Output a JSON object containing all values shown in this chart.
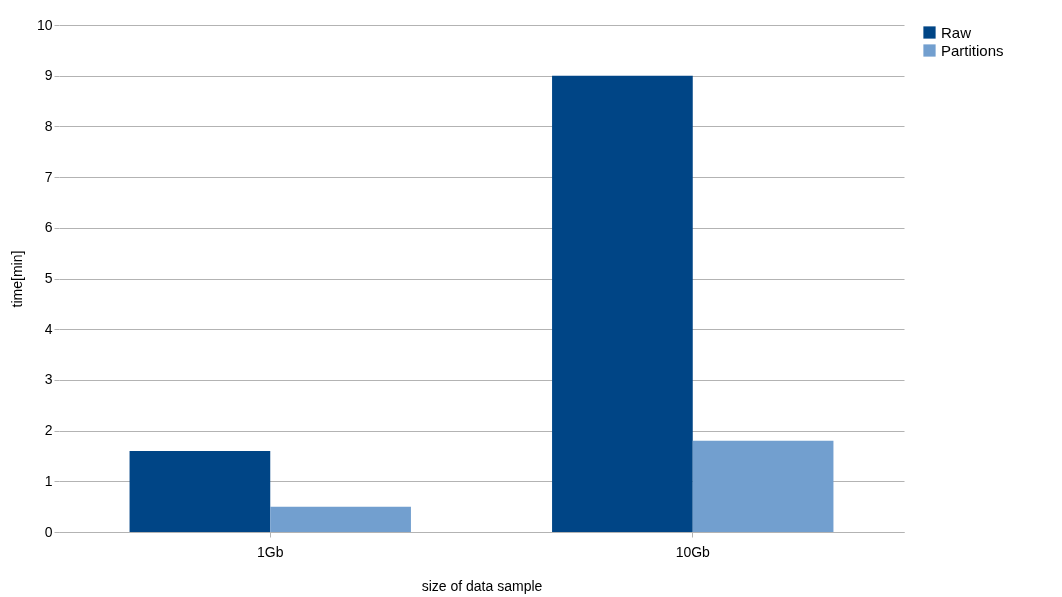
{
  "chart_data": {
    "type": "bar",
    "xlabel": "size of data sample",
    "ylabel": "time[min]",
    "categories": [
      "1Gb",
      "10Gb"
    ],
    "series": [
      {
        "name": "Raw",
        "color": "#004586",
        "values": [
          1.6,
          9.0
        ]
      },
      {
        "name": "Partitions",
        "color": "#729fcf",
        "values": [
          0.5,
          1.8
        ]
      }
    ],
    "ylim": [
      0,
      10
    ],
    "yticks": [
      0,
      1,
      2,
      3,
      4,
      5,
      6,
      7,
      8,
      9,
      10
    ],
    "grid": "y",
    "legend": "right"
  }
}
